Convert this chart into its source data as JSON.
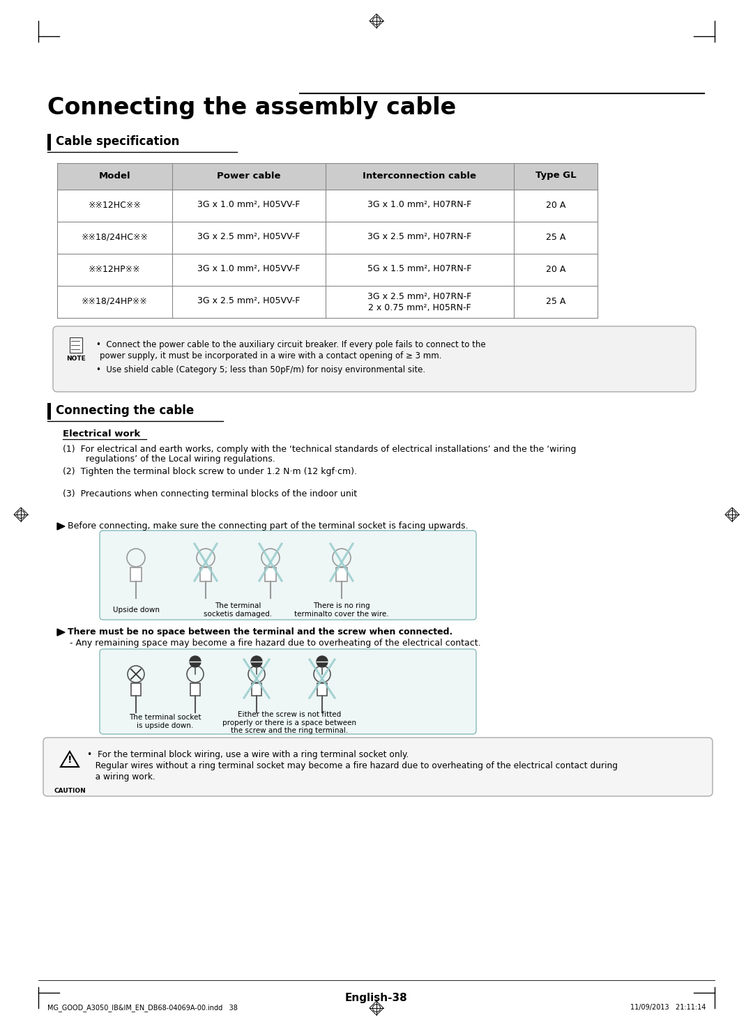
{
  "page_title": "Connecting the assembly cable",
  "section1_title": "Cable specification",
  "section2_title": "Connecting the cable",
  "table_headers": [
    "Model",
    "Power cable",
    "Interconnection cable",
    "Type GL"
  ],
  "table_rows": [
    [
      "※※12HC※※",
      "3G x 1.0 mm², H05VV-F",
      "3G x 1.0 mm², H07RN-F",
      "20 A"
    ],
    [
      "※※18/24HC※※",
      "3G x 2.5 mm², H05VV-F",
      "3G x 2.5 mm², H07RN-F",
      "25 A"
    ],
    [
      "※※12HP※※",
      "3G x 1.0 mm², H05VV-F",
      "5G x 1.5 mm², H07RN-F",
      "20 A"
    ],
    [
      "※※18/24HP※※",
      "3G x 2.5 mm², H05VV-F",
      "3G x 2.5 mm², H07RN-F\n2 x 0.75 mm², H05RN-F",
      "25 A"
    ]
  ],
  "note_bullets": [
    "Connect the power cable to the auxiliary circuit breaker. If every pole fails to connect to the power supply, it must be incorporated in a wire with a contact opening of ≥ 3 mm.",
    "Use shield cable (Category 5; less than 50pF/m) for noisy environmental site."
  ],
  "electrical_work_title": "Electrical work",
  "electrical_work_items": [
    "(1)  For electrical and earth works, comply with the ‘technical standards of electrical installations’ and the the ‘wiring\n       regulations’ of the Local wiring regulations.",
    "(2)  Tighten the terminal block screw to under 1.2 N·m (12 kgf·cm).",
    "(3)  Precautions when connecting terminal blocks of the indoor unit"
  ],
  "bullet1_text": "Before connecting, make sure the connecting part of the terminal socket is facing upwards.",
  "diagram1_labels": [
    "Upside down",
    "The terminal\nsocketis damaged.",
    "There is no ring\nterminalto cover the wire."
  ],
  "bullet2_line1": "There must be no space between the terminal and the screw when connected.",
  "bullet2_line2": "- Any remaining space may become a fire hazard due to overheating of the electrical contact.",
  "diagram2_label1": "The terminal socket\nis upside down.",
  "diagram2_label2": "Either the screw is not fitted\nproperly or there is a space between\nthe screw and the ring terminal.",
  "caution_line1": "•  For the terminal block wiring, use a wire with a ring terminal socket only.",
  "caution_line2": "   Regular wires without a ring terminal socket may become a fire hazard due to overheating of the electrical contact during",
  "caution_line3": "   a wiring work.",
  "footer_text": "English-38",
  "footer_file": "MG_GOOD_A3050_IB&IM_EN_DB68-04069A-00.indd   38",
  "footer_date": "11/09/2013   21:11:14",
  "bg_color": "#ffffff",
  "table_header_bg": "#cccccc",
  "table_alt_bg": "#f0f0f0",
  "note_bg": "#f2f2f2",
  "note_border": "#aaaaaa",
  "diagram_border": "#88bbbb",
  "diagram_bg": "#eef6f6",
  "caution_bg": "#f5f5f5"
}
